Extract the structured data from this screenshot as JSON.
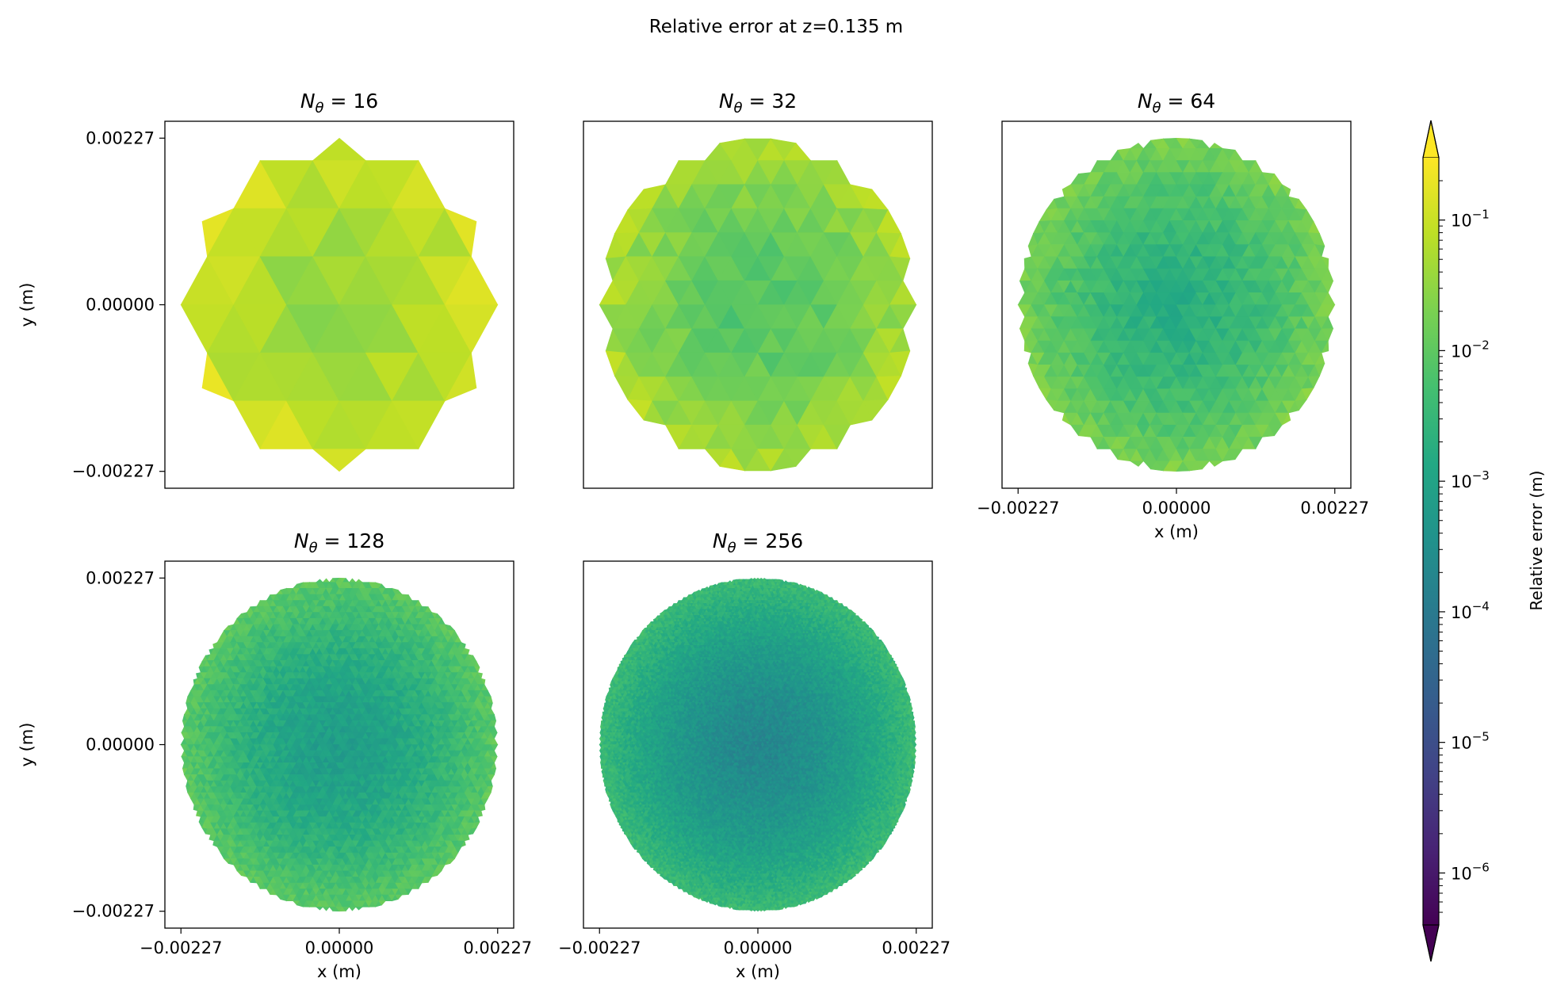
{
  "figure": {
    "suptitle": "Relative error at z=0.135 m"
  },
  "colorbar": {
    "label": "Relative error (m)",
    "colormap": "viridis",
    "scale": "log",
    "range": [
      4e-07,
      0.3
    ],
    "extend": "both",
    "ticks": [
      {
        "value": 1e-06,
        "base": "10",
        "exp": "−6"
      },
      {
        "value": 1e-05,
        "base": "10",
        "exp": "−5"
      },
      {
        "value": 0.0001,
        "base": "10",
        "exp": "−4"
      },
      {
        "value": 0.001,
        "base": "10",
        "exp": "−3"
      },
      {
        "value": 0.01,
        "base": "10",
        "exp": "−2"
      },
      {
        "value": 0.1,
        "base": "10",
        "exp": "−1"
      }
    ]
  },
  "axes_common": {
    "xlabel": "x (m)",
    "ylabel": "y (m)",
    "ticks": [
      -0.00227,
      0.0,
      0.00227
    ],
    "tick_labels": [
      "−0.00227",
      "0.00000",
      "0.00227"
    ],
    "lim": [
      -0.0025,
      0.0025
    ],
    "radius": 0.00227
  },
  "chart_data": [
    {
      "type": "heatmap",
      "title_sym": "N",
      "title_sub": "θ",
      "title_rhs": " = 16",
      "N_theta": 16,
      "center_error": 0.03,
      "edge_error": 0.15,
      "show_xlabels": false,
      "show_ylabels": true
    },
    {
      "type": "heatmap",
      "title_sym": "N",
      "title_sub": "θ",
      "title_rhs": " = 32",
      "N_theta": 32,
      "center_error": 0.007,
      "edge_error": 0.06,
      "show_xlabels": false,
      "show_ylabels": false
    },
    {
      "type": "heatmap",
      "title_sym": "N",
      "title_sub": "θ",
      "title_rhs": " = 64",
      "N_theta": 64,
      "center_error": 0.0018,
      "edge_error": 0.02,
      "show_xlabels": true,
      "show_ylabels": false
    },
    {
      "type": "heatmap",
      "title_sym": "N",
      "title_sub": "θ",
      "title_rhs": " = 128",
      "N_theta": 128,
      "center_error": 0.0007,
      "edge_error": 0.01,
      "show_xlabels": true,
      "show_ylabels": true
    },
    {
      "type": "heatmap",
      "title_sym": "N",
      "title_sub": "θ",
      "title_rhs": " = 256",
      "N_theta": 256,
      "center_error": 0.0002,
      "edge_error": 0.004,
      "show_xlabels": true,
      "show_ylabels": false
    }
  ]
}
